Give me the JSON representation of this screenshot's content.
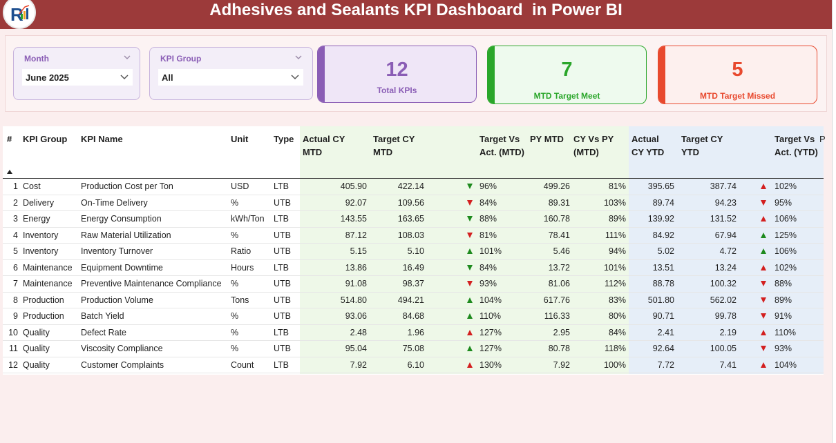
{
  "header": {
    "title": "Adhesives and Sealants KPI Dashboard  in Power BI"
  },
  "slicers": {
    "month": {
      "label": "Month",
      "value": "June 2025"
    },
    "kpi_group": {
      "label": "KPI Group",
      "value": "All"
    }
  },
  "cards": {
    "total": {
      "value": "12",
      "label": "Total KPIs"
    },
    "meet": {
      "value": "7",
      "label": "MTD Target Meet"
    },
    "missed": {
      "value": "5",
      "label": "MTD Target Missed"
    }
  },
  "colors": {
    "header_bg": "#9c3a3a",
    "card_total": "#8a5db5",
    "card_meet": "#2aa62a",
    "card_missed": "#e8492e",
    "arrow_up_green": "#1e8a1e",
    "arrow_down_red": "#d32020"
  },
  "table": {
    "columns": {
      "num": "#",
      "group": "KPI Group",
      "name": "KPI Name",
      "unit": "Unit",
      "type": "Type",
      "actual_mtd": "Actual CY MTD",
      "target_mtd": "Target CY MTD",
      "tva_mtd": "Target Vs Act. (MTD)",
      "py_mtd": "PY MTD",
      "cy_vs_py": "CY Vs PY (MTD)",
      "actual_ytd": "Actual CY YTD",
      "target_ytd": "Target CY YTD",
      "tva_ytd": "Target Vs Act. (YTD)",
      "cut": "P"
    },
    "rows": [
      {
        "num": "1",
        "group": "Cost",
        "name": "Production Cost per Ton",
        "unit": "USD",
        "type": "LTB",
        "actual_mtd": "405.90",
        "target_mtd": "422.14",
        "icon_mtd": "arrow-down-green-icon",
        "tva_mtd": "96%",
        "py_mtd": "499.26",
        "cy_vs_py": "81%",
        "actual_ytd": "395.65",
        "target_ytd": "387.74",
        "icon_ytd": "arrow-up-red-icon",
        "tva_ytd": "102%"
      },
      {
        "num": "2",
        "group": "Delivery",
        "name": "On-Time Delivery",
        "unit": "%",
        "type": "UTB",
        "actual_mtd": "92.07",
        "target_mtd": "109.56",
        "icon_mtd": "arrow-down-red-icon",
        "tva_mtd": "84%",
        "py_mtd": "89.31",
        "cy_vs_py": "103%",
        "actual_ytd": "89.74",
        "target_ytd": "94.23",
        "icon_ytd": "arrow-down-red-icon",
        "tva_ytd": "95%"
      },
      {
        "num": "3",
        "group": "Energy",
        "name": "Energy Consumption",
        "unit": "kWh/Ton",
        "type": "LTB",
        "actual_mtd": "143.55",
        "target_mtd": "163.65",
        "icon_mtd": "arrow-down-green-icon",
        "tva_mtd": "88%",
        "py_mtd": "160.78",
        "cy_vs_py": "89%",
        "actual_ytd": "139.92",
        "target_ytd": "131.52",
        "icon_ytd": "arrow-up-red-icon",
        "tva_ytd": "106%"
      },
      {
        "num": "4",
        "group": "Inventory",
        "name": "Raw Material Utilization",
        "unit": "%",
        "type": "UTB",
        "actual_mtd": "87.12",
        "target_mtd": "108.03",
        "icon_mtd": "arrow-down-red-icon",
        "tva_mtd": "81%",
        "py_mtd": "78.41",
        "cy_vs_py": "111%",
        "actual_ytd": "84.92",
        "target_ytd": "67.94",
        "icon_ytd": "arrow-up-green-icon",
        "tva_ytd": "125%"
      },
      {
        "num": "5",
        "group": "Inventory",
        "name": "Inventory Turnover",
        "unit": "Ratio",
        "type": "UTB",
        "actual_mtd": "5.15",
        "target_mtd": "5.10",
        "icon_mtd": "arrow-up-green-icon",
        "tva_mtd": "101%",
        "py_mtd": "5.46",
        "cy_vs_py": "94%",
        "actual_ytd": "5.02",
        "target_ytd": "4.72",
        "icon_ytd": "arrow-up-green-icon",
        "tva_ytd": "106%"
      },
      {
        "num": "6",
        "group": "Maintenance",
        "name": "Equipment Downtime",
        "unit": "Hours",
        "type": "LTB",
        "actual_mtd": "13.86",
        "target_mtd": "16.49",
        "icon_mtd": "arrow-down-green-icon",
        "tva_mtd": "84%",
        "py_mtd": "13.72",
        "cy_vs_py": "101%",
        "actual_ytd": "13.51",
        "target_ytd": "13.24",
        "icon_ytd": "arrow-up-red-icon",
        "tva_ytd": "102%"
      },
      {
        "num": "7",
        "group": "Maintenance",
        "name": "Preventive Maintenance Compliance",
        "unit": "%",
        "type": "UTB",
        "actual_mtd": "91.08",
        "target_mtd": "98.37",
        "icon_mtd": "arrow-down-red-icon",
        "tva_mtd": "93%",
        "py_mtd": "81.06",
        "cy_vs_py": "112%",
        "actual_ytd": "88.78",
        "target_ytd": "100.32",
        "icon_ytd": "arrow-down-red-icon",
        "tva_ytd": "88%"
      },
      {
        "num": "8",
        "group": "Production",
        "name": "Production Volume",
        "unit": "Tons",
        "type": "UTB",
        "actual_mtd": "514.80",
        "target_mtd": "494.21",
        "icon_mtd": "arrow-up-green-icon",
        "tva_mtd": "104%",
        "py_mtd": "617.76",
        "cy_vs_py": "83%",
        "actual_ytd": "501.80",
        "target_ytd": "562.02",
        "icon_ytd": "arrow-down-red-icon",
        "tva_ytd": "89%"
      },
      {
        "num": "9",
        "group": "Production",
        "name": "Batch Yield",
        "unit": "%",
        "type": "UTB",
        "actual_mtd": "93.06",
        "target_mtd": "84.68",
        "icon_mtd": "arrow-up-green-icon",
        "tva_mtd": "110%",
        "py_mtd": "116.33",
        "cy_vs_py": "80%",
        "actual_ytd": "90.71",
        "target_ytd": "99.78",
        "icon_ytd": "arrow-down-red-icon",
        "tva_ytd": "91%"
      },
      {
        "num": "10",
        "group": "Quality",
        "name": "Defect Rate",
        "unit": "%",
        "type": "LTB",
        "actual_mtd": "2.48",
        "target_mtd": "1.96",
        "icon_mtd": "arrow-up-red-icon",
        "tva_mtd": "127%",
        "py_mtd": "2.95",
        "cy_vs_py": "84%",
        "actual_ytd": "2.41",
        "target_ytd": "2.19",
        "icon_ytd": "arrow-up-red-icon",
        "tva_ytd": "110%"
      },
      {
        "num": "11",
        "group": "Quality",
        "name": "Viscosity Compliance",
        "unit": "%",
        "type": "UTB",
        "actual_mtd": "95.04",
        "target_mtd": "75.08",
        "icon_mtd": "arrow-up-green-icon",
        "tva_mtd": "127%",
        "py_mtd": "80.78",
        "cy_vs_py": "118%",
        "actual_ytd": "92.64",
        "target_ytd": "100.05",
        "icon_ytd": "arrow-down-red-icon",
        "tva_ytd": "93%"
      },
      {
        "num": "12",
        "group": "Quality",
        "name": "Customer Complaints",
        "unit": "Count",
        "type": "LTB",
        "actual_mtd": "7.92",
        "target_mtd": "6.10",
        "icon_mtd": "arrow-up-red-icon",
        "tva_mtd": "130%",
        "py_mtd": "7.92",
        "cy_vs_py": "100%",
        "actual_ytd": "7.72",
        "target_ytd": "7.41",
        "icon_ytd": "arrow-up-red-icon",
        "tva_ytd": "104%"
      }
    ]
  }
}
